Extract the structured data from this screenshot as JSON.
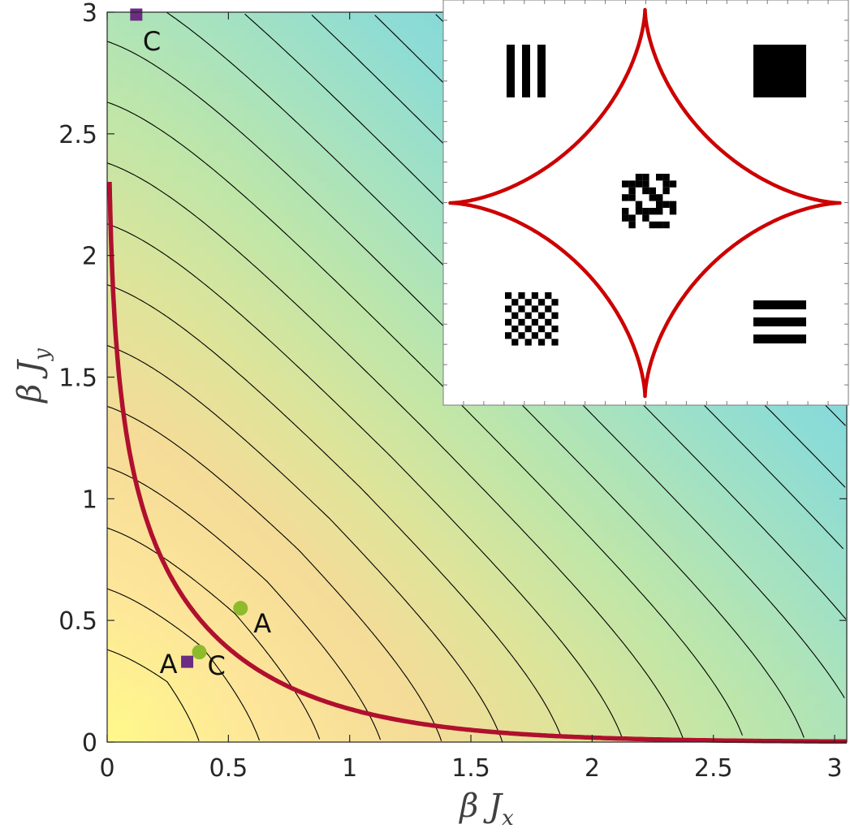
{
  "chart_data": [
    {
      "type": "contour",
      "title": "",
      "xlabel": "β J",
      "xlabel_sub": "x",
      "ylabel": "β J",
      "ylabel_sub": "y",
      "xlim": [
        0,
        3.05
      ],
      "ylim": [
        0,
        3.0
      ],
      "xticks": [
        0,
        0.5,
        1,
        1.5,
        2,
        2.5,
        3
      ],
      "xtick_labels": [
        "0",
        "0.5",
        "1",
        "1.5",
        "2",
        "2.5",
        "3"
      ],
      "yticks": [
        0,
        0.5,
        1,
        1.5,
        2,
        2.5,
        3
      ],
      "ytick_labels": [
        "0",
        "0.5",
        "1",
        "1.5",
        "2",
        "2.5",
        "3"
      ],
      "grid": false,
      "colormap": [
        "#fff98a",
        "#fde69a",
        "#f5dc98",
        "#dde49a",
        "#bfe6a8",
        "#a6e2c0",
        "#8edcd4",
        "#7fd7df",
        "#93ccea",
        "#a5c3f4"
      ],
      "contour_line_color": "#000000",
      "contour_levels_x_plus_y": [
        0.6,
        0.85,
        1.1,
        1.35,
        1.6,
        1.85,
        2.1,
        2.35,
        2.6,
        2.85,
        3.1,
        3.35,
        3.6,
        3.85,
        4.1,
        4.35,
        4.6,
        4.85,
        5.1,
        5.35,
        5.6,
        5.85
      ],
      "critical_curve": {
        "color": "#b0102e",
        "relation": "sinh(2βJx)·sinh(2βJy) = 1"
      },
      "points": [
        {
          "label": "A",
          "marker": "circle",
          "color": "#8dbb2b",
          "x": 0.55,
          "y": 0.55
        },
        {
          "label": "C",
          "marker": "circle",
          "color": "#8dbb2b",
          "x": 0.38,
          "y": 0.37
        },
        {
          "label": "A",
          "marker": "square",
          "color": "#6b2c82",
          "x": 0.33,
          "y": 0.33
        },
        {
          "label": "C",
          "marker": "square",
          "color": "#6b2c82",
          "x": 0.12,
          "y": 2.99
        }
      ]
    },
    {
      "type": "inset-diagram",
      "curve_color": "#cc0000",
      "patterns": [
        {
          "name": "vertical-stripes",
          "position": "top-left"
        },
        {
          "name": "ferromagnetic",
          "position": "top-right"
        },
        {
          "name": "disordered",
          "position": "center"
        },
        {
          "name": "checkerboard",
          "position": "bottom-left"
        },
        {
          "name": "horizontal-stripes",
          "position": "bottom-right"
        }
      ]
    }
  ]
}
